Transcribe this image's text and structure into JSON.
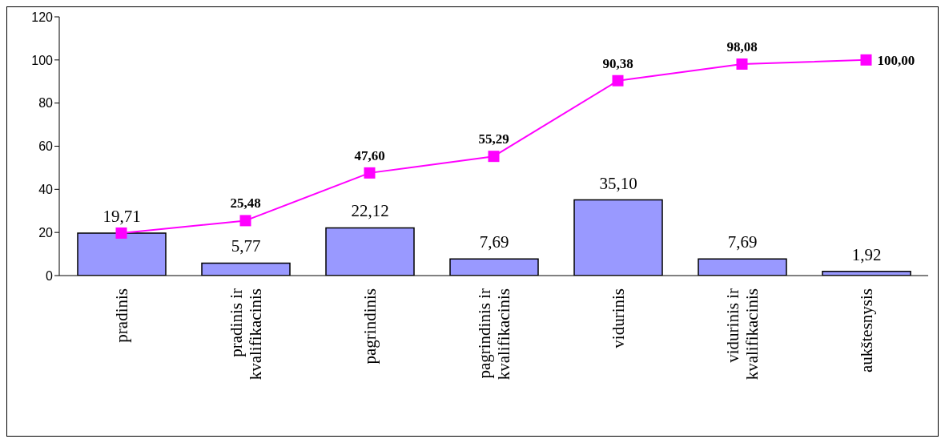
{
  "chart_data": {
    "type": "bar",
    "categories": [
      "pradinis",
      "pradinis ir kvalifikacinis",
      "pagrindinis",
      "pagrindinis ir kvalifikacinis",
      "vidurinis",
      "vidurinis ir kvalifikacinis",
      "aukštesnysis"
    ],
    "series": [
      {
        "color": "#9999ff",
        "values": [
          19.71,
          5.77,
          22.12,
          7.69,
          35.1,
          7.69,
          1.92
        ],
        "value_labels": [
          "19,71",
          "5,77",
          "22,12",
          "7,69",
          "35,10",
          "7,69",
          "1,92"
        ]
      },
      {
        "type": "line",
        "color": "#ff00ff",
        "values": [
          19.71,
          25.48,
          47.6,
          55.29,
          90.38,
          98.08,
          100.0
        ],
        "value_labels": [
          null,
          "25,48",
          "47,60",
          "55,29",
          "90,38",
          "98,08",
          "100,00"
        ]
      }
    ],
    "ylim": [
      0,
      120
    ],
    "yticks": [
      0,
      20,
      40,
      60,
      80,
      100,
      120
    ],
    "marker": "square"
  }
}
